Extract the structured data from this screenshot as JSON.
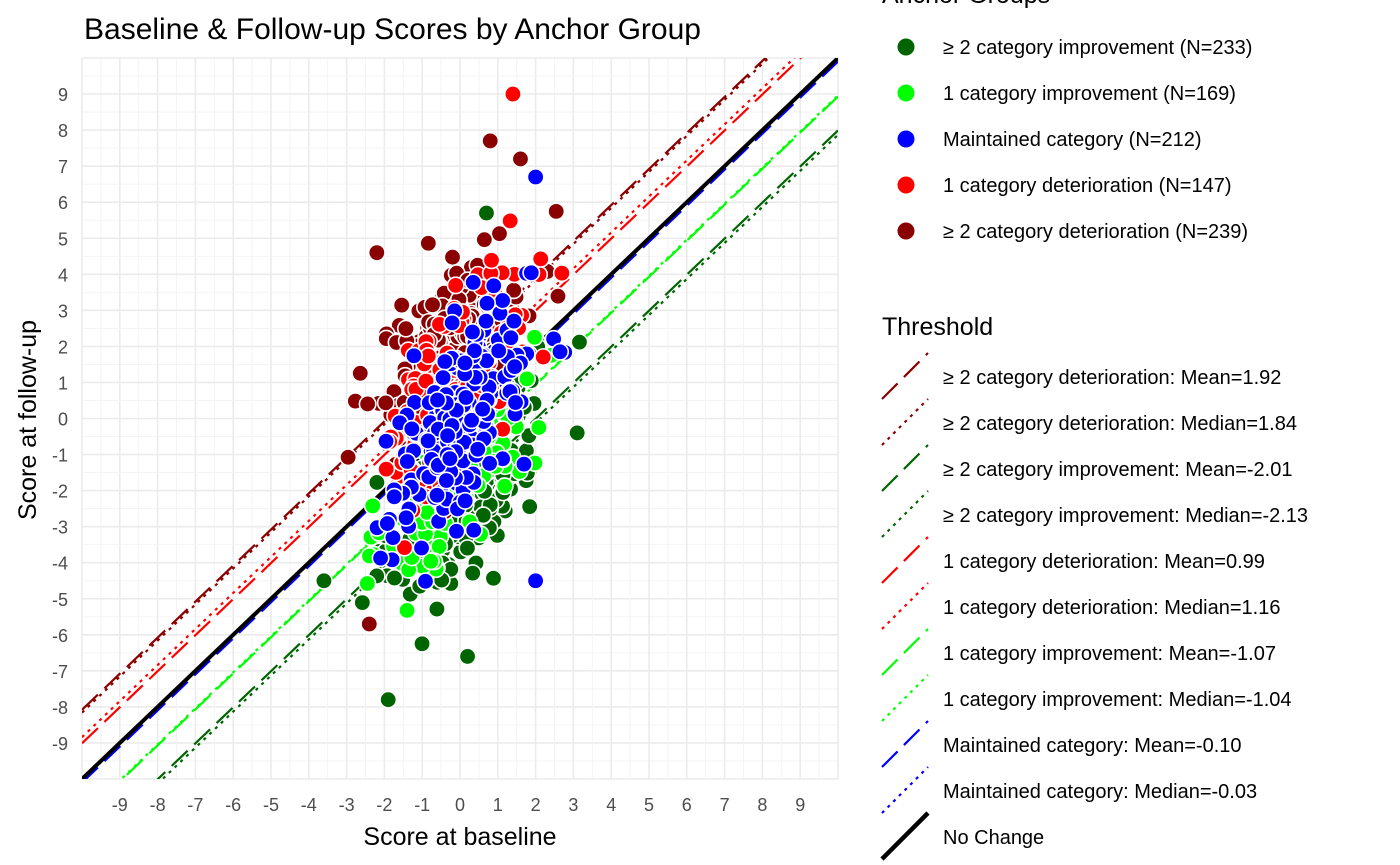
{
  "chart_data": {
    "type": "scatter",
    "title": "Baseline & Follow-up Scores by Anchor Group",
    "xlabel": "Score at baseline",
    "ylabel": "Score at follow-up",
    "xlim": [
      -10,
      10
    ],
    "ylim": [
      -10,
      10
    ],
    "xticks": [
      -9,
      -8,
      -7,
      -6,
      -5,
      -4,
      -3,
      -2,
      -1,
      0,
      1,
      2,
      3,
      4,
      5,
      6,
      7,
      8,
      9
    ],
    "yticks": [
      -9,
      -8,
      -7,
      -6,
      -5,
      -4,
      -3,
      -2,
      -1,
      0,
      1,
      2,
      3,
      4,
      5,
      6,
      7,
      8,
      9
    ],
    "grid": true,
    "legend_position": "right",
    "groups_legend_title": "Anchor Groups",
    "threshold_legend_title": "Threshold",
    "groups": [
      {
        "name": "≥ 2 category improvement (N=233)",
        "color": "#006400",
        "n": 233,
        "shift_mean": -2.01,
        "x_mean": 0.1
      },
      {
        "name": "1 category improvement (N=169)",
        "color": "#00FF00",
        "n": 169,
        "shift_mean": -1.07,
        "x_mean": 0.0
      },
      {
        "name": "Maintained category (N=212)",
        "color": "#0000FF",
        "n": 212,
        "shift_mean": -0.1,
        "x_mean": 0.0
      },
      {
        "name": "1 category deterioration (N=147)",
        "color": "#FF0000",
        "n": 147,
        "shift_mean": 0.99,
        "x_mean": 0.0
      },
      {
        "name": "≥ 2 category deterioration (N=239)",
        "color": "#8B0000",
        "n": 239,
        "shift_mean": 1.92,
        "x_mean": -0.2
      }
    ],
    "outliers": [
      {
        "x": 1.4,
        "y": 9.0,
        "group": 3
      },
      {
        "x": 0.8,
        "y": 7.7,
        "group": 4
      },
      {
        "x": 1.6,
        "y": 7.2,
        "group": 4
      },
      {
        "x": 2.0,
        "y": 6.7,
        "group": 2
      },
      {
        "x": -1.9,
        "y": -7.8,
        "group": 0
      },
      {
        "x": 2.0,
        "y": -4.5,
        "group": 2
      },
      {
        "x": -3.6,
        "y": -4.5,
        "group": 0
      },
      {
        "x": 3.1,
        "y": -0.4,
        "group": 0
      },
      {
        "x": -2.4,
        "y": -5.7,
        "group": 4
      },
      {
        "x": -2.2,
        "y": 4.6,
        "group": 4
      },
      {
        "x": 0.7,
        "y": 5.7,
        "group": 0
      },
      {
        "x": 0.2,
        "y": -6.6,
        "group": 0
      }
    ],
    "thresholds": [
      {
        "label": "≥ 2 category deterioration: Mean=1.92",
        "value": 1.92,
        "color": "#8B0000",
        "dash": "longdash"
      },
      {
        "label": "≥ 2 category deterioration: Median=1.84",
        "value": 1.84,
        "color": "#8B0000",
        "dash": "dotted"
      },
      {
        "label": "≥ 2 category improvement: Mean=-2.01",
        "value": -2.01,
        "color": "#006400",
        "dash": "longdash"
      },
      {
        "label": "≥ 2 category improvement: Median=-2.13",
        "value": -2.13,
        "color": "#006400",
        "dash": "dotted"
      },
      {
        "label": "1 category deterioration: Mean=0.99",
        "value": 0.99,
        "color": "#FF0000",
        "dash": "longdash"
      },
      {
        "label": "1 category deterioration: Median=1.16",
        "value": 1.16,
        "color": "#FF0000",
        "dash": "dotted"
      },
      {
        "label": "1 category improvement: Mean=-1.07",
        "value": -1.07,
        "color": "#00FF00",
        "dash": "longdash"
      },
      {
        "label": "1 category improvement: Median=-1.04",
        "value": -1.04,
        "color": "#00FF00",
        "dash": "dotted"
      },
      {
        "label": "Maintained category: Mean=-0.10",
        "value": -0.1,
        "color": "#0000FF",
        "dash": "longdash"
      },
      {
        "label": "Maintained category: Median=-0.03",
        "value": -0.03,
        "color": "#0000FF",
        "dash": "dotted"
      },
      {
        "label": "No Change",
        "value": 0,
        "color": "#000000",
        "dash": "solid"
      }
    ]
  }
}
